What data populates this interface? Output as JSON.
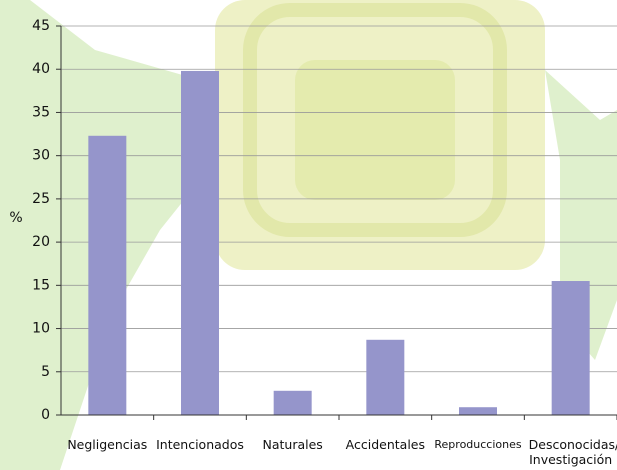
{
  "chart_data": {
    "type": "bar",
    "y_label": "%",
    "categories": [
      "Negligencias",
      "Intencionados",
      "Naturales",
      "Accidentales",
      "Reproducciones",
      "Desconocidas/ Investigación"
    ],
    "values": [
      32.3,
      39.8,
      2.8,
      8.7,
      0.9,
      15.5
    ],
    "color": "#9595cb",
    "ylim": [
      0,
      45
    ],
    "yticks": [
      0,
      5,
      10,
      15,
      20,
      25,
      30,
      35,
      40,
      45
    ],
    "grid": true
  }
}
